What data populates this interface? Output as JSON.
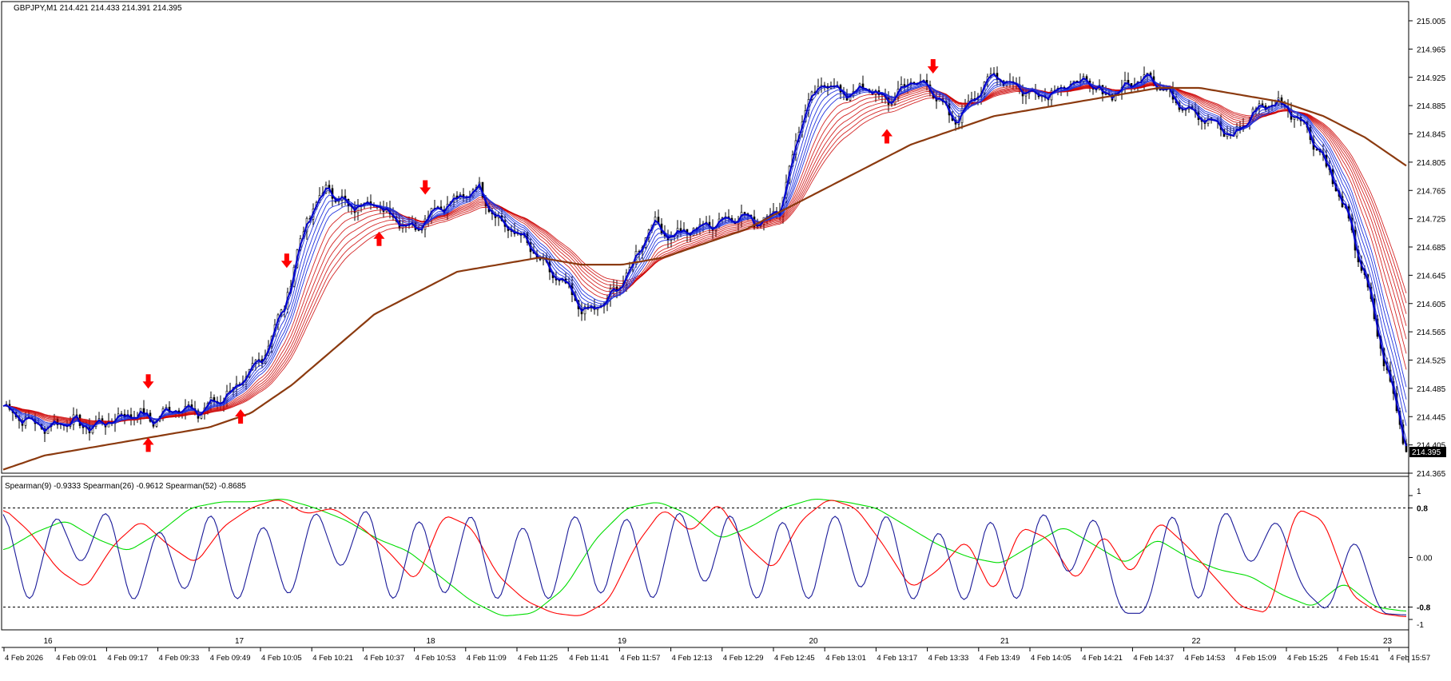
{
  "header": {
    "symbol_label": "GBPJPY,M1  214.421 214.433 214.391 214.395"
  },
  "main_chart": {
    "current_price_label": "214.395",
    "y_ticks": [
      "215.005",
      "214.965",
      "214.925",
      "214.885",
      "214.845",
      "214.805",
      "214.765",
      "214.725",
      "214.685",
      "214.645",
      "214.605",
      "214.565",
      "214.525",
      "214.485",
      "214.445",
      "214.405",
      "214.365"
    ],
    "colors": {
      "candles": "#000000",
      "fast_ma": "#0000cc",
      "mid_ma": "#2233dd",
      "slow_ma": "#cc0000",
      "trend_ma": "#8b3a0f",
      "arrow": "#ff0000"
    }
  },
  "indicator": {
    "title": "Spearman(9) -0.9333  Spearman(26) -0.9612  Spearman(52) -0.8685",
    "y_ticks": [
      "1",
      "0.8",
      "0.00",
      "-0.8",
      "-1"
    ],
    "colors": {
      "spearman9": "#1a1a99",
      "spearman26": "#ff0000",
      "spearman52": "#00dd00",
      "levels": "#000000"
    }
  },
  "time_axis": {
    "top_labels": [
      "16",
      "17",
      "18",
      "19",
      "20",
      "21",
      "22",
      "23"
    ],
    "bottom_labels": [
      "4 Feb 2026",
      "4 Feb 09:01",
      "4 Feb 09:17",
      "4 Feb 09:33",
      "4 Feb 09:49",
      "4 Feb 10:05",
      "4 Feb 10:21",
      "4 Feb 10:37",
      "4 Feb 10:53",
      "4 Feb 11:09",
      "4 Feb 11:25",
      "4 Feb 11:41",
      "4 Feb 11:57",
      "4 Feb 12:13",
      "4 Feb 12:29",
      "4 Feb 12:45",
      "4 Feb 13:01",
      "4 Feb 13:17",
      "4 Feb 13:33",
      "4 Feb 13:49",
      "4 Feb 14:05",
      "4 Feb 14:21",
      "4 Feb 14:37",
      "4 Feb 14:53",
      "4 Feb 15:09",
      "4 Feb 15:25",
      "4 Feb 15:41",
      "4 Feb 15:57"
    ]
  },
  "chart_data": [
    {
      "type": "line",
      "title": "GBPJPY,M1  214.421 214.433 214.391 214.395",
      "ylim": [
        214.365,
        215.005
      ],
      "x_labels": [
        "4 Feb 2026",
        "4 Feb 09:01",
        "4 Feb 09:17",
        "4 Feb 09:33",
        "4 Feb 09:49",
        "4 Feb 10:05",
        "4 Feb 10:21",
        "4 Feb 10:37",
        "4 Feb 10:53",
        "4 Feb 11:09",
        "4 Feb 11:25",
        "4 Feb 11:41",
        "4 Feb 11:57",
        "4 Feb 12:13",
        "4 Feb 12:29",
        "4 Feb 12:45",
        "4 Feb 13:01",
        "4 Feb 13:17",
        "4 Feb 13:33",
        "4 Feb 13:49",
        "4 Feb 14:05",
        "4 Feb 14:21",
        "4 Feb 14:37",
        "4 Feb 14:53",
        "4 Feb 15:09",
        "4 Feb 15:25",
        "4 Feb 15:41",
        "4 Feb 15:57"
      ],
      "price_path": [
        214.46,
        214.44,
        214.43,
        214.44,
        214.43,
        214.44,
        214.45,
        214.44,
        214.46,
        214.45,
        214.47,
        214.49,
        214.53,
        214.6,
        214.72,
        214.77,
        214.74,
        214.75,
        214.73,
        214.71,
        214.74,
        214.75,
        214.77,
        214.72,
        214.7,
        214.66,
        214.63,
        214.59,
        214.61,
        214.65,
        214.72,
        214.7,
        214.71,
        214.72,
        214.73,
        214.72,
        214.74,
        214.87,
        214.92,
        214.9,
        214.91,
        214.89,
        214.92,
        214.91,
        214.86,
        214.9,
        214.93,
        214.91,
        214.9,
        214.91,
        214.92,
        214.9,
        214.91,
        214.93,
        214.9,
        214.88,
        214.86,
        214.84,
        214.88,
        214.89,
        214.87,
        214.82,
        214.75,
        214.65,
        214.52,
        214.4
      ],
      "trend_ma_path": [
        214.37,
        214.39,
        214.4,
        214.41,
        214.42,
        214.43,
        214.45,
        214.49,
        214.54,
        214.59,
        214.62,
        214.65,
        214.66,
        214.67,
        214.66,
        214.66,
        214.67,
        214.69,
        214.71,
        214.74,
        214.77,
        214.8,
        214.83,
        214.85,
        214.87,
        214.88,
        214.89,
        214.9,
        214.91,
        214.91,
        214.9,
        214.89,
        214.87,
        214.84,
        214.8
      ],
      "arrows": [
        {
          "type": "up",
          "x": "4 Feb 09:17"
        },
        {
          "type": "down",
          "x": "4 Feb 09:17"
        },
        {
          "type": "up",
          "x": "4 Feb 09:49"
        },
        {
          "type": "down",
          "x": "4 Feb 10:05"
        },
        {
          "type": "up",
          "x": "4 Feb 10:37"
        },
        {
          "type": "down",
          "x": "4 Feb 10:53"
        },
        {
          "type": "up",
          "x": "4 Feb 13:33"
        },
        {
          "type": "down",
          "x": "4 Feb 13:49"
        }
      ]
    },
    {
      "type": "line",
      "title": "Spearman(9) -0.9333  Spearman(26) -0.9612  Spearman(52) -0.8685",
      "ylim": [
        -1,
        1
      ],
      "levels": [
        0.8,
        -0.8
      ],
      "series": [
        {
          "name": "Spearman(9)",
          "values": [
            0.9,
            -0.9,
            0.8,
            -0.2,
            0.9,
            -0.9,
            0.6,
            -0.7,
            0.9,
            -0.9,
            0.7,
            -0.8,
            0.9,
            -0.3,
            0.95,
            -0.9,
            0.8,
            -0.8,
            0.9,
            -0.9,
            0.7,
            -0.9,
            0.9,
            -0.8,
            0.85,
            -0.9,
            0.95,
            -0.6,
            0.9,
            -0.9,
            0.8,
            -0.9,
            0.9,
            -0.7,
            0.9,
            -0.9,
            0.6,
            -0.9,
            0.8,
            -0.9,
            0.9,
            -0.4,
            0.8,
            -0.9,
            -0.9,
            0.9,
            -0.9,
            0.9,
            -0.2,
            0.7,
            -0.5,
            -0.9,
            0.4,
            -0.9,
            -0.93
          ]
        },
        {
          "name": "Spearman(26)",
          "values": [
            0.8,
            0.4,
            -0.2,
            -0.5,
            0.2,
            0.6,
            0.2,
            -0.1,
            0.5,
            0.8,
            0.95,
            0.7,
            0.8,
            0.5,
            0.1,
            -0.4,
            0.7,
            0.5,
            -0.3,
            -0.7,
            -0.9,
            -0.95,
            -0.7,
            0.2,
            0.8,
            0.4,
            0.9,
            0.2,
            -0.2,
            0.6,
            0.95,
            0.8,
            0.2,
            -0.5,
            -0.2,
            0.3,
            -0.6,
            0.5,
            0.3,
            -0.4,
            0.4,
            -0.3,
            0.6,
            0.2,
            -0.3,
            -0.8,
            -0.9,
            0.8,
            0.6,
            -0.6,
            -0.9,
            -0.96
          ]
        },
        {
          "name": "Spearman(52)",
          "values": [
            0.1,
            0.4,
            0.6,
            0.3,
            0.1,
            0.4,
            0.8,
            0.9,
            0.9,
            0.95,
            0.8,
            0.6,
            0.3,
            0.1,
            -0.3,
            -0.7,
            -0.95,
            -0.9,
            -0.5,
            0.3,
            0.8,
            0.9,
            0.7,
            0.3,
            0.5,
            0.8,
            0.95,
            0.9,
            0.8,
            0.5,
            0.2,
            0.0,
            -0.1,
            0.2,
            0.5,
            0.2,
            -0.1,
            0.3,
            0.0,
            -0.2,
            -0.3,
            -0.6,
            -0.8,
            -0.4,
            -0.8,
            -0.87
          ]
        }
      ]
    }
  ]
}
